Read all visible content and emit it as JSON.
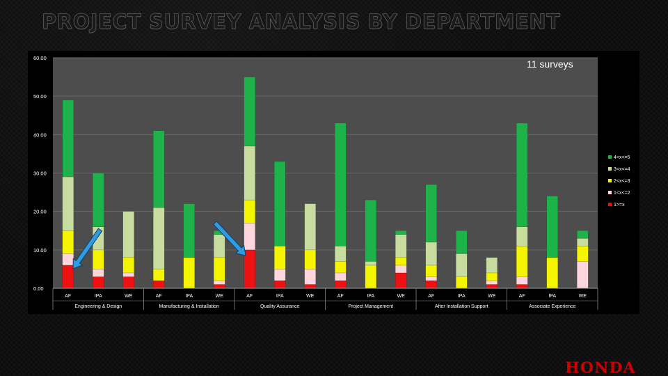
{
  "page": {
    "title": "PROJECT SURVEY ANALYSIS BY DEPARTMENT",
    "annotation": "11 surveys",
    "logo": "HONDA"
  },
  "colors": {
    "levels": [
      "#ee1111",
      "#ffd6dc",
      "#f5f500",
      "#c9dca0",
      "#1db34a"
    ],
    "plot_bg": "#4d4d4d",
    "arrow": "#2f9be0",
    "axis_text": "#ffffff"
  },
  "chart_data": {
    "type": "bar",
    "stacked": true,
    "ylim": [
      0,
      60
    ],
    "y_ticks": [
      "0.00",
      "10.00",
      "20.00",
      "30.00",
      "40.00",
      "50.00",
      "60.00"
    ],
    "grid": true,
    "legend_position": "right",
    "categories": [
      "AF",
      "IPA",
      "WE",
      "AF",
      "IPA",
      "WE",
      "AF",
      "IPA",
      "WE",
      "AF",
      "IPA",
      "WE",
      "AF",
      "IPA",
      "WE",
      "AF",
      "IPA",
      "WE"
    ],
    "groups": [
      "Engineering & Design",
      "Manufacturing & Installation",
      "Quality Assurance",
      "Project Management",
      "After Installation Support",
      "Associate Experience"
    ],
    "series": [
      {
        "name": "1>=x",
        "values": [
          6,
          3,
          3,
          2,
          0,
          1,
          10,
          2,
          1,
          2,
          0,
          4,
          2,
          0,
          1,
          1,
          0,
          0
        ]
      },
      {
        "name": "1<x<=2",
        "values": [
          3,
          2,
          1,
          0,
          0,
          1,
          7,
          3,
          4,
          2,
          0,
          2,
          1,
          0,
          1,
          2,
          0,
          7
        ]
      },
      {
        "name": "2<x<=3",
        "values": [
          6,
          5,
          4,
          3,
          8,
          6,
          6,
          6,
          5,
          3,
          6,
          2,
          3,
          3,
          2,
          8,
          8,
          4
        ]
      },
      {
        "name": "3<x<=4",
        "values": [
          14,
          6,
          12,
          16,
          0,
          6,
          14,
          0,
          12,
          4,
          1,
          6,
          6,
          6,
          4,
          5,
          0,
          2
        ]
      },
      {
        "name": "4<x<=5",
        "values": [
          20,
          14,
          0,
          20,
          14,
          1,
          18,
          22,
          0,
          32,
          16,
          1,
          15,
          6,
          0,
          27,
          16,
          2
        ]
      }
    ]
  }
}
